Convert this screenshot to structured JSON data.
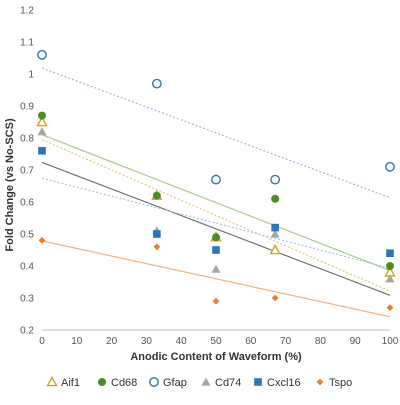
{
  "chart_data": {
    "type": "scatter",
    "xlabel": "Anodic Content of Waveform (%)",
    "ylabel": "Fold Change (vs No-SCS)",
    "xlim": [
      0,
      100
    ],
    "ylim": [
      0.2,
      1.2
    ],
    "x_ticks": [
      "0",
      "10",
      "20",
      "30",
      "40",
      "50",
      "60",
      "70",
      "80",
      "90",
      "100"
    ],
    "y_ticks": [
      "0.2",
      "0.3",
      "0.4",
      "0.5",
      "0.6",
      "0.7",
      "0.8",
      "0.9",
      "1",
      "1.1",
      "1.2"
    ],
    "grid": false,
    "legend_position": "bottom",
    "trendlines": true,
    "series": [
      {
        "name": "Aif1",
        "marker": "triangle-open",
        "color": "#E0A020",
        "trend_color": "#E8C77A",
        "x": [
          0,
          33,
          50,
          67,
          100
        ],
        "y": [
          0.85,
          0.62,
          0.49,
          0.45,
          0.38
        ]
      },
      {
        "name": "Cd68",
        "marker": "circle-filled",
        "color": "#4E8B2A",
        "trend_color": "#A8C98E",
        "x": [
          0,
          33,
          50,
          67,
          100
        ],
        "y": [
          0.87,
          0.62,
          0.49,
          0.61,
          0.4
        ]
      },
      {
        "name": "Gfap",
        "marker": "circle-open",
        "color": "#2E75B6",
        "trend_color": "#9DB9DF",
        "x": [
          0,
          33,
          50,
          67,
          100
        ],
        "y": [
          1.06,
          0.97,
          0.67,
          0.67,
          0.71
        ]
      },
      {
        "name": "Cd74",
        "marker": "triangle-filled",
        "color": "#A5A5A5",
        "trend_color": "#707070",
        "x": [
          0,
          33,
          50,
          67,
          100
        ],
        "y": [
          0.82,
          0.51,
          0.39,
          0.5,
          0.36
        ]
      },
      {
        "name": "Cxcl16",
        "marker": "square-filled",
        "color": "#2E75B6",
        "trend_color": "#A9C4E4",
        "x": [
          0,
          33,
          50,
          67,
          100
        ],
        "y": [
          0.76,
          0.5,
          0.45,
          0.52,
          0.44
        ]
      },
      {
        "name": "Tspo",
        "marker": "diamond-filled",
        "color": "#ED7D31",
        "trend_color": "#F4B183",
        "x": [
          0,
          33,
          50,
          67,
          100
        ],
        "y": [
          0.48,
          0.46,
          0.29,
          0.3,
          0.27
        ]
      }
    ]
  }
}
